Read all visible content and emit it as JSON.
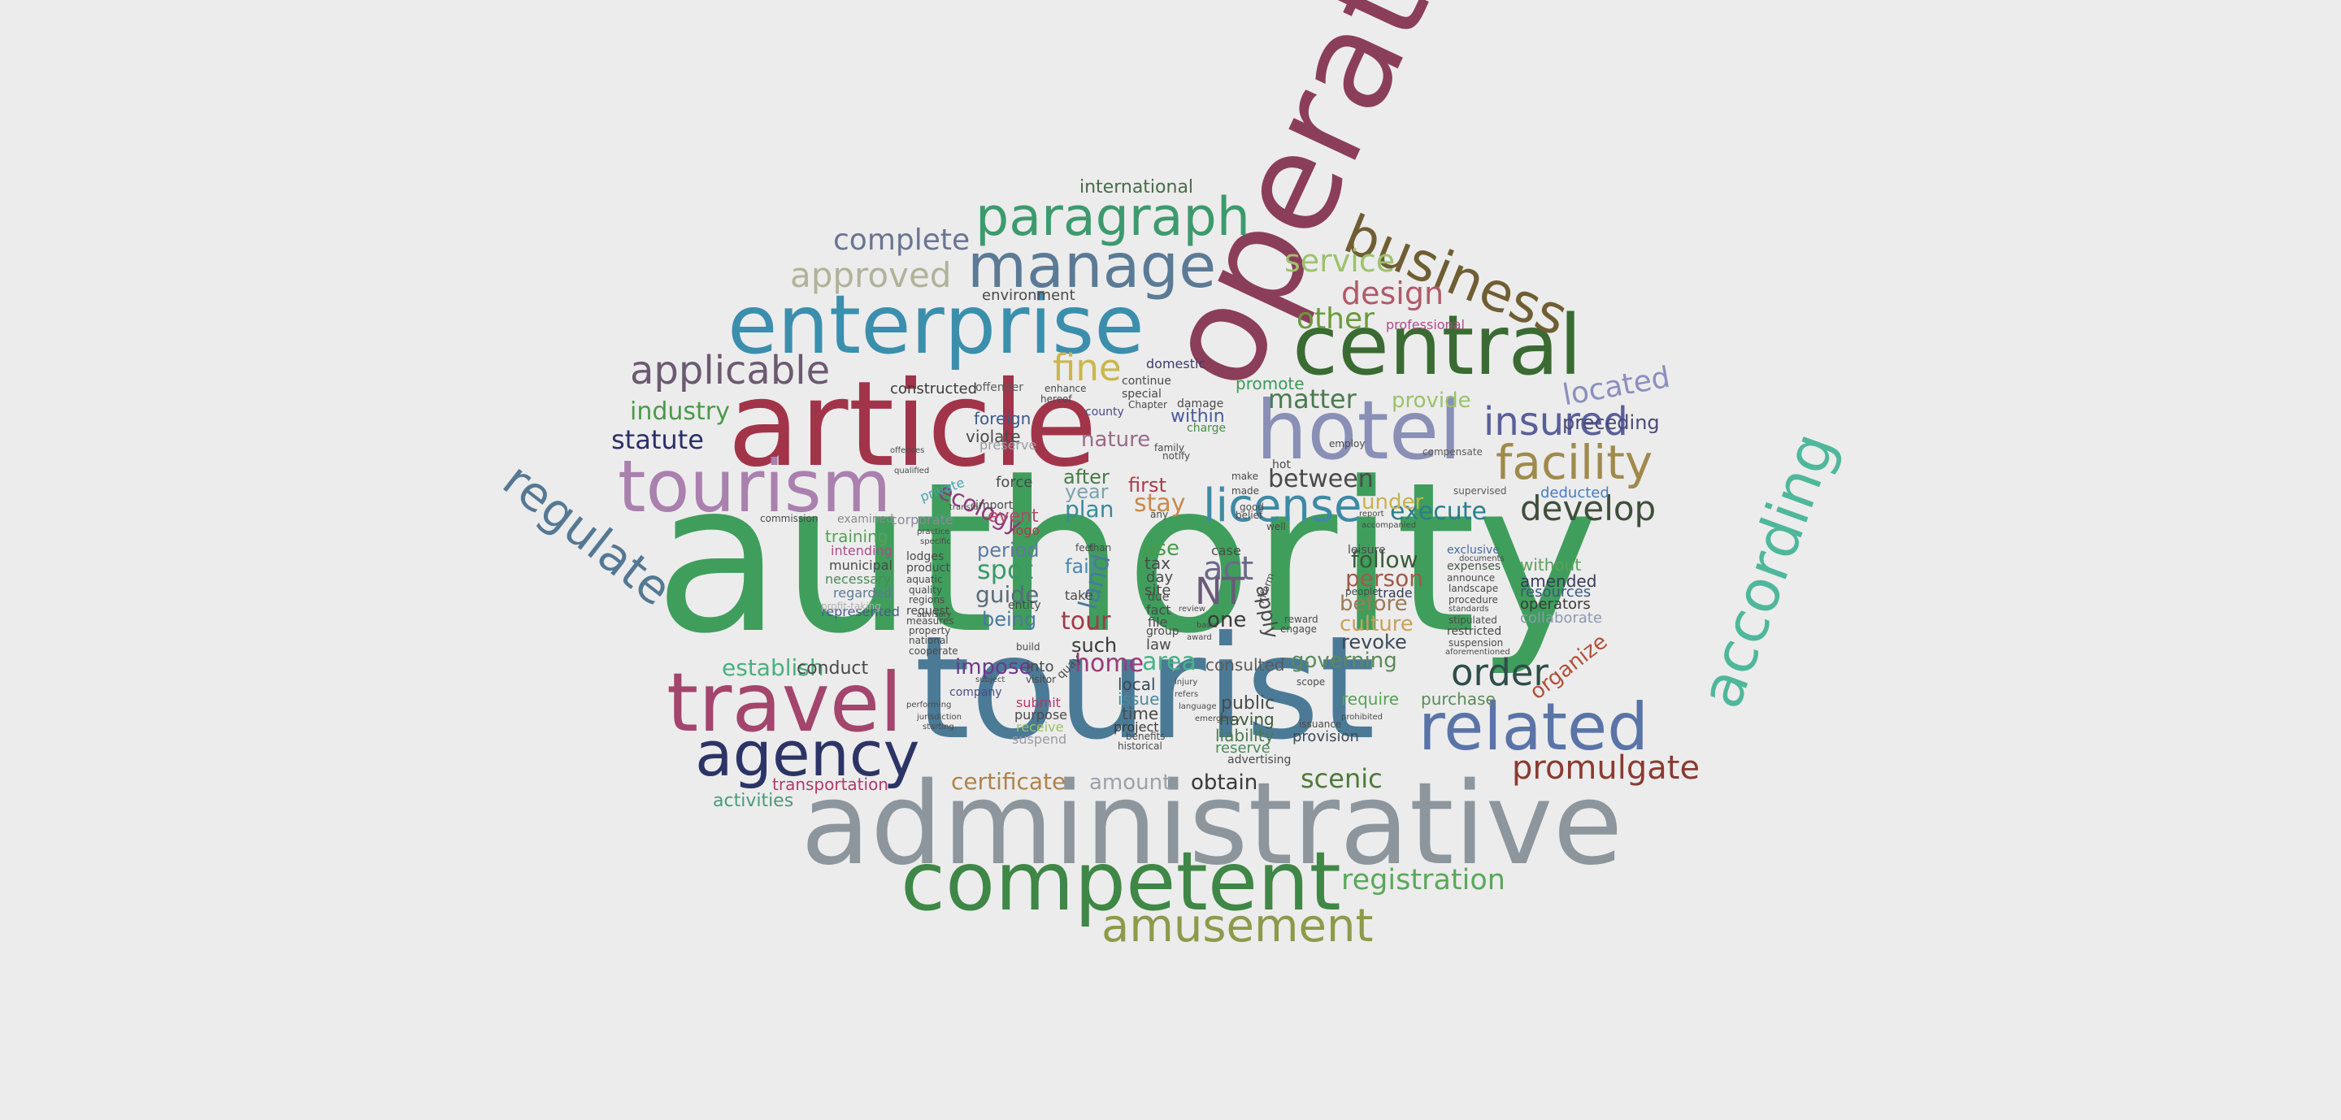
{
  "words": [
    {
      "text": "authority",
      "color": "#3f9e5c"
    },
    {
      "text": "tourist",
      "color": "#4a7a96"
    },
    {
      "text": "administrative",
      "color": "#8d969c"
    },
    {
      "text": "operate",
      "color": "#8b3e59"
    },
    {
      "text": "article",
      "color": "#a2344a"
    },
    {
      "text": "competent",
      "color": "#3f8746"
    },
    {
      "text": "enterprise",
      "color": "#3b8fad"
    },
    {
      "text": "central",
      "color": "#3a6b32"
    },
    {
      "text": "hotel",
      "color": "#8a8fb6"
    },
    {
      "text": "travel",
      "color": "#a3456c"
    },
    {
      "text": "tourism",
      "color": "#a980ae"
    },
    {
      "text": "according",
      "color": "#4fb79b"
    },
    {
      "text": "agency",
      "color": "#2c3466"
    },
    {
      "text": "related",
      "color": "#5a74a8"
    },
    {
      "text": "business",
      "color": "#6f5e34"
    },
    {
      "text": "manage",
      "color": "#5b7a95"
    },
    {
      "text": "paragraph",
      "color": "#3d9a6e"
    },
    {
      "text": "regulate",
      "color": "#557893"
    },
    {
      "text": "amusement",
      "color": "#8d9a4a"
    },
    {
      "text": "license",
      "color": "#3e8aa5"
    },
    {
      "text": "facility",
      "color": "#a08a4c"
    },
    {
      "text": "insured",
      "color": "#5a5f9a"
    },
    {
      "text": "applicable",
      "color": "#6b5a70"
    },
    {
      "text": "approved",
      "color": "#b2b29a"
    },
    {
      "text": "complete",
      "color": "#6a7592"
    },
    {
      "text": "develop",
      "color": "#3f4f3a"
    },
    {
      "text": "promulgate",
      "color": "#8b3a32"
    },
    {
      "text": "order",
      "color": "#2f4d4a"
    },
    {
      "text": "registration",
      "color": "#5aa85a"
    },
    {
      "text": "located",
      "color": "#8b8fbd"
    },
    {
      "text": "fine",
      "color": "#c9b74a"
    },
    {
      "text": "matter",
      "color": "#4b7a50"
    },
    {
      "text": "design",
      "color": "#b05a6a"
    },
    {
      "text": "service",
      "color": "#9cc26e"
    },
    {
      "text": "scenic",
      "color": "#4d7a3a"
    },
    {
      "text": "certificate",
      "color": "#b0824a"
    },
    {
      "text": "execute",
      "color": "#2a7f8a"
    },
    {
      "text": "between",
      "color": "#4a4a4a"
    },
    {
      "text": "statute",
      "color": "#2a2f6a"
    },
    {
      "text": "industry",
      "color": "#4a9a4a"
    },
    {
      "text": "establish",
      "color": "#4ab07e"
    },
    {
      "text": "preceding",
      "color": "#4a4a7a"
    },
    {
      "text": "organize",
      "color": "#b0503a"
    },
    {
      "text": "other",
      "color": "#6a9a3a"
    },
    {
      "text": "international",
      "color": "#4a6a4a"
    },
    {
      "text": "amount",
      "color": "#9aa2ac"
    },
    {
      "text": "obtain",
      "color": "#3a3a3a"
    },
    {
      "text": "activities",
      "color": "#4a9a7a"
    },
    {
      "text": "transportation",
      "color": "#b03a6a"
    },
    {
      "text": "environment",
      "color": "#4a4a4a"
    },
    {
      "text": "nature",
      "color": "#9a6a8a"
    },
    {
      "text": "ecology",
      "color": "#8a3a7a"
    },
    {
      "text": "spot",
      "color": "#3a9a6a"
    },
    {
      "text": "guide",
      "color": "#5a6a7a"
    },
    {
      "text": "period",
      "color": "#5a7aa2"
    },
    {
      "text": "impose",
      "color": "#6a3a8a"
    },
    {
      "text": "home",
      "color": "#9a3a7a"
    },
    {
      "text": "area",
      "color": "#4ab08a"
    },
    {
      "text": "governing",
      "color": "#5a8a5a"
    },
    {
      "text": "revoke",
      "color": "#3a4a5a"
    },
    {
      "text": "person",
      "color": "#a05a4a"
    },
    {
      "text": "before",
      "color": "#9a7a5a"
    },
    {
      "text": "follow",
      "color": "#3a5a3a"
    },
    {
      "text": "culture",
      "color": "#c9a05a"
    },
    {
      "text": "tour",
      "color": "#a03a4a"
    },
    {
      "text": "act",
      "color": "#6a6a8a"
    },
    {
      "text": "NT",
      "color": "#6a5a7a"
    },
    {
      "text": "one",
      "color": "#3a3a3a"
    },
    {
      "text": "stay",
      "color": "#c98a4a"
    },
    {
      "text": "first",
      "color": "#b03a4a"
    },
    {
      "text": "plan",
      "color": "#3a8a9a"
    },
    {
      "text": "year",
      "color": "#7aa2b0"
    },
    {
      "text": "after",
      "color": "#4a7a4a"
    },
    {
      "text": "fail",
      "color": "#4a8ab0"
    },
    {
      "text": "being",
      "color": "#4a7a9a"
    },
    {
      "text": "such",
      "color": "#3a3a3a"
    },
    {
      "text": "provide",
      "color": "#9ac26a"
    },
    {
      "text": "promote",
      "color": "#3a9a5a"
    },
    {
      "text": "within",
      "color": "#4a5a9a"
    },
    {
      "text": "foreign",
      "color": "#3a5a8a"
    },
    {
      "text": "violate",
      "color": "#4a4a4a"
    },
    {
      "text": "conduct",
      "color": "#4a4a4a"
    },
    {
      "text": "consulted",
      "color": "#5a5a5a"
    },
    {
      "text": "require",
      "color": "#5aa05a"
    },
    {
      "text": "purchase",
      "color": "#5a8a5a"
    },
    {
      "text": "public",
      "color": "#4a4a4a"
    },
    {
      "text": "having",
      "color": "#3a5a3a"
    },
    {
      "text": "liability",
      "color": "#4a7a4a"
    },
    {
      "text": "reserve",
      "color": "#4a8a5a"
    },
    {
      "text": "provision",
      "color": "#3a4a5a"
    },
    {
      "text": "issue",
      "color": "#4a8a9a"
    },
    {
      "text": "local",
      "color": "#3a4a5a"
    },
    {
      "text": "time",
      "color": "#4a4a4a"
    },
    {
      "text": "project",
      "color": "#3a3a3a"
    },
    {
      "text": "use",
      "color": "#4a9a4a"
    },
    {
      "text": "tax",
      "color": "#4a4a4a"
    },
    {
      "text": "land",
      "color": "#4a7a9a"
    },
    {
      "text": "apply",
      "color": "#4a4a4a"
    },
    {
      "text": "under",
      "color": "#c9b04a"
    },
    {
      "text": "without",
      "color": "#5aa05a"
    },
    {
      "text": "amended",
      "color": "#3a3a5a"
    },
    {
      "text": "resources",
      "color": "#3a5a7a"
    },
    {
      "text": "operators",
      "color": "#3a3a3a"
    },
    {
      "text": "collaborate",
      "color": "#8a9ab0"
    },
    {
      "text": "deducted",
      "color": "#4a7ac2"
    },
    {
      "text": "leisure",
      "color": "#4a4a4a"
    },
    {
      "text": "trade",
      "color": "#3a3a5a"
    },
    {
      "text": "exclusive",
      "color": "#4a6a9a"
    },
    {
      "text": "expenses",
      "color": "#4a5a4a"
    },
    {
      "text": "supervised",
      "color": "#5a5a5a"
    },
    {
      "text": "professional",
      "color": "#b04a8a"
    },
    {
      "text": "compensate",
      "color": "#5a5a5a"
    },
    {
      "text": "training",
      "color": "#5aa05a"
    },
    {
      "text": "intending",
      "color": "#b04a8a"
    },
    {
      "text": "municipal",
      "color": "#4a4a4a"
    },
    {
      "text": "necessary",
      "color": "#4a8a5a"
    },
    {
      "text": "regarded",
      "color": "#5a7a9a"
    },
    {
      "text": "represented",
      "color": "#4a5a8a"
    },
    {
      "text": "profit-taking",
      "color": "#b0b0b0"
    },
    {
      "text": "examined",
      "color": "#8a8a8a"
    },
    {
      "text": "commission",
      "color": "#4a4a4a"
    },
    {
      "text": "corporate",
      "color": "#8a8a9a"
    },
    {
      "text": "lodges",
      "color": "#4a4a4a"
    },
    {
      "text": "product",
      "color": "#4a4a4a"
    },
    {
      "text": "aquatic",
      "color": "#4a4a4a"
    },
    {
      "text": "quality",
      "color": "#4a4a4a"
    },
    {
      "text": "regions",
      "color": "#4a4a4a"
    },
    {
      "text": "request",
      "color": "#4a4a4a"
    },
    {
      "text": "measures",
      "color": "#4a4a4a"
    },
    {
      "text": "property",
      "color": "#4a4a4a"
    },
    {
      "text": "national",
      "color": "#4a4a4a"
    },
    {
      "text": "cooperate",
      "color": "#4a4a4a"
    },
    {
      "text": "logo",
      "color": "#b03a4a"
    },
    {
      "text": "event",
      "color": "#b04a6a"
    },
    {
      "text": "force",
      "color": "#4a4a4a"
    },
    {
      "text": "import",
      "color": "#4a4a4a"
    },
    {
      "text": "private",
      "color": "#4aa2b0"
    },
    {
      "text": "preserve",
      "color": "#9a9aa2"
    },
    {
      "text": "constructed",
      "color": "#3a3a3a"
    },
    {
      "text": "offender",
      "color": "#5a5a5a"
    },
    {
      "text": "domestic",
      "color": "#3a3a6a"
    },
    {
      "text": "special",
      "color": "#4a4a4a"
    },
    {
      "text": "county",
      "color": "#4a4a8a"
    },
    {
      "text": "continue",
      "color": "#4a4a4a"
    },
    {
      "text": "damage",
      "color": "#4a4a4a"
    },
    {
      "text": "charge",
      "color": "#4a8a4a"
    },
    {
      "text": "employ",
      "color": "#4a4a4a"
    },
    {
      "text": "make",
      "color": "#4a4a4a"
    },
    {
      "text": "made",
      "color": "#4a4a4a"
    },
    {
      "text": "hot",
      "color": "#4a4a4a"
    },
    {
      "text": "well",
      "color": "#4a4a4a"
    },
    {
      "text": "case",
      "color": "#4a4a4a"
    },
    {
      "text": "day",
      "color": "#4a4a4a"
    },
    {
      "text": "site",
      "color": "#4a4a4a"
    },
    {
      "text": "fact",
      "color": "#4a4a4a"
    },
    {
      "text": "file",
      "color": "#4a4a4a"
    },
    {
      "text": "due",
      "color": "#4a4a4a"
    },
    {
      "text": "group",
      "color": "#4a4a4a"
    },
    {
      "text": "law",
      "color": "#4a4a4a"
    },
    {
      "text": "take",
      "color": "#4a4a4a"
    },
    {
      "text": "entity",
      "color": "#4a4a4a"
    },
    {
      "text": "into",
      "color": "#4a4a4a"
    },
    {
      "text": "company",
      "color": "#4a4a8a"
    },
    {
      "text": "submit",
      "color": "#b03a6a"
    },
    {
      "text": "purpose",
      "color": "#4a4a4a"
    },
    {
      "text": "receive",
      "color": "#9ac26a"
    },
    {
      "text": "suspend",
      "color": "#9a9aa2"
    },
    {
      "text": "benefits",
      "color": "#4a4a4a"
    },
    {
      "text": "historical",
      "color": "#4a4a4a"
    },
    {
      "text": "advertising",
      "color": "#4a4a4a"
    },
    {
      "text": "engage",
      "color": "#4a4a4a"
    },
    {
      "text": "reward",
      "color": "#4a4a4a"
    },
    {
      "text": "scope",
      "color": "#4a4a4a"
    },
    {
      "text": "issuance",
      "color": "#4a4a4a"
    },
    {
      "text": "people",
      "color": "#4a4a4a"
    },
    {
      "text": "report",
      "color": "#4a4a4a"
    },
    {
      "text": "announce",
      "color": "#4a4a4a"
    },
    {
      "text": "landscape",
      "color": "#4a4a4a"
    },
    {
      "text": "procedure",
      "color": "#4a4a4a"
    },
    {
      "text": "standards",
      "color": "#4a4a4a"
    },
    {
      "text": "stipulated",
      "color": "#4a4a4a"
    },
    {
      "text": "restricted",
      "color": "#4a4a4a"
    },
    {
      "text": "suspension",
      "color": "#4a4a4a"
    },
    {
      "text": "aforementioned",
      "color": "#4a4a4a"
    },
    {
      "text": "documents",
      "color": "#4a4a4a"
    },
    {
      "text": "accompanied",
      "color": "#4a4a4a"
    },
    {
      "text": "prohibited",
      "color": "#4a4a4a"
    },
    {
      "text": "subject",
      "color": "#4a4a4a"
    },
    {
      "text": "performing",
      "color": "#4a4a4a"
    },
    {
      "text": "jurisdiction",
      "color": "#4a4a4a"
    },
    {
      "text": "starting",
      "color": "#4a4a4a"
    },
    {
      "text": "offences",
      "color": "#4a4a4a"
    },
    {
      "text": "qualified",
      "color": "#4a4a4a"
    },
    {
      "text": "practice",
      "color": "#4a4a4a"
    },
    {
      "text": "specific",
      "color": "#4a4a4a"
    },
    {
      "text": "advisory",
      "color": "#4a4a4a"
    },
    {
      "text": "transfer",
      "color": "#4a4a4a"
    },
    {
      "text": "build",
      "color": "#4a4a4a"
    },
    {
      "text": "visitor",
      "color": "#4a4a4a"
    },
    {
      "text": "hereof",
      "color": "#4a4a4a"
    },
    {
      "text": "enhance",
      "color": "#4a4a4a"
    },
    {
      "text": "Chapter",
      "color": "#4a4a4a"
    },
    {
      "text": "notify",
      "color": "#4a4a4a"
    },
    {
      "text": "family",
      "color": "#4a4a4a"
    },
    {
      "text": "belief",
      "color": "#4a4a4a"
    },
    {
      "text": "good",
      "color": "#4a4a4a"
    },
    {
      "text": "any",
      "color": "#4a4a4a"
    },
    {
      "text": "feel",
      "color": "#4a4a4a"
    },
    {
      "text": "than",
      "color": "#4a4a4a"
    },
    {
      "text": "refers",
      "color": "#4a4a4a"
    },
    {
      "text": "injury",
      "color": "#4a4a4a"
    },
    {
      "text": "award",
      "color": "#4a4a4a"
    },
    {
      "text": "basis",
      "color": "#4a4a4a"
    },
    {
      "text": "quay",
      "color": "#4a4a4a"
    },
    {
      "text": "review",
      "color": "#4a4a4a"
    },
    {
      "text": "inform",
      "color": "#4a4a4a"
    },
    {
      "text": "language",
      "color": "#4a4a4a"
    },
    {
      "text": "emergency",
      "color": "#4a4a4a"
    }
  ]
}
